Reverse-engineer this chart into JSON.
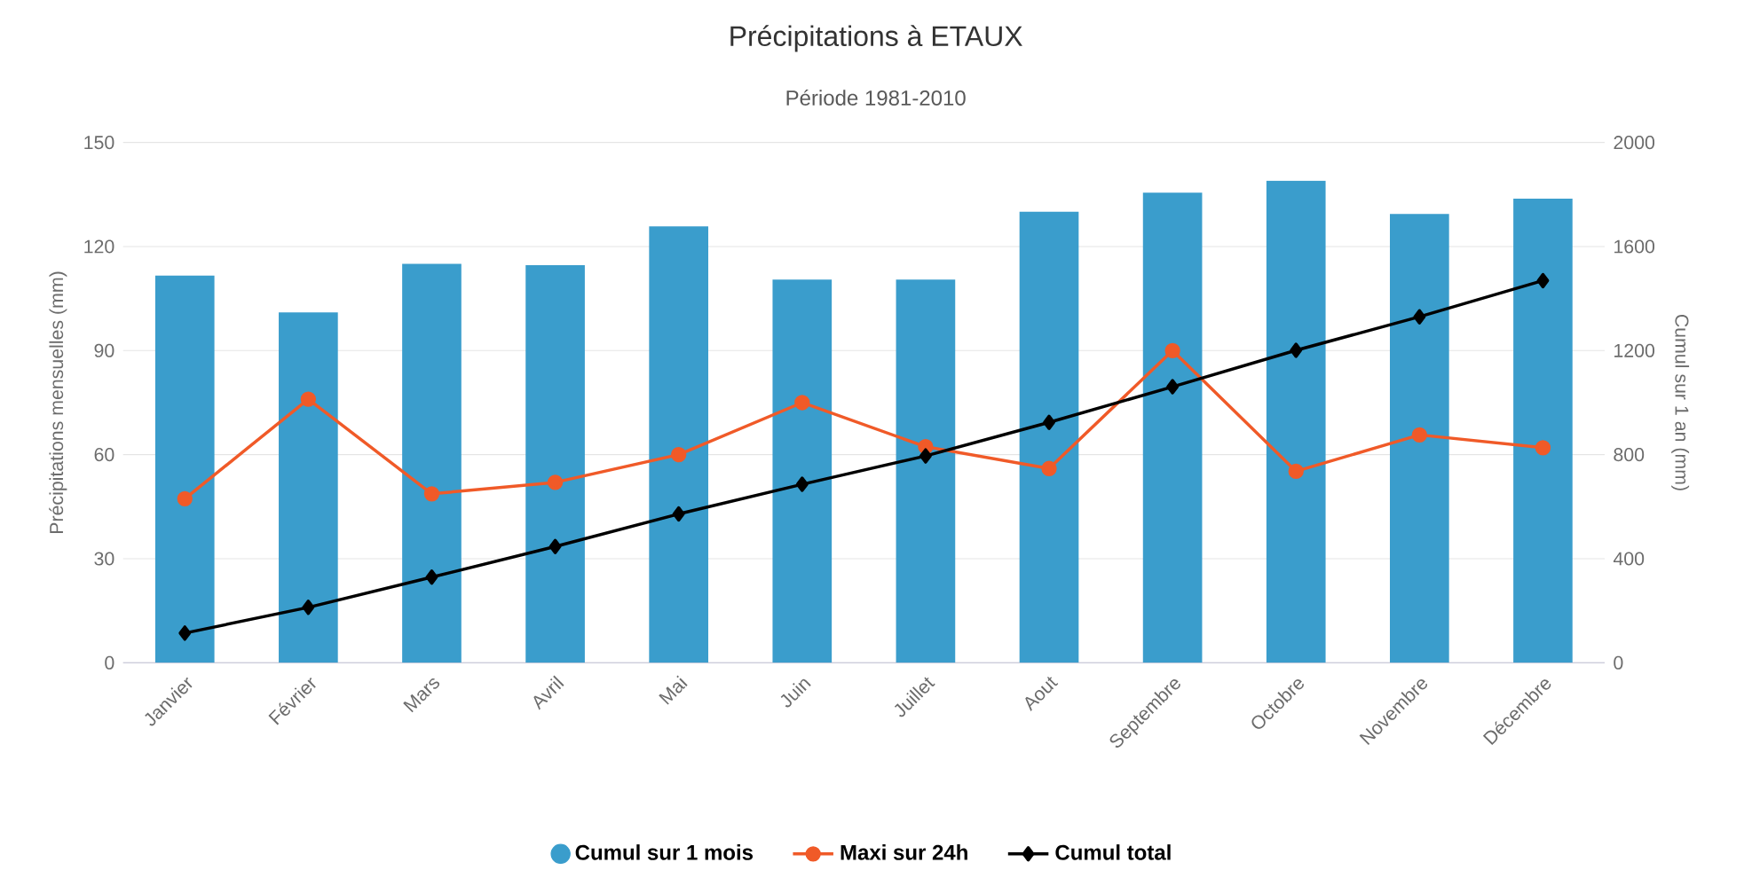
{
  "chart_data": {
    "type": "bar",
    "title": "Précipitations à ETAUX",
    "subtitle": "Période 1981-2010",
    "ylabel": "Précipitations mensuelles (mm)",
    "y2label": "Cumul sur 1 an (mm)",
    "categories": [
      "Janvier",
      "Février",
      "Mars",
      "Avril",
      "Mai",
      "Juin",
      "Juillet",
      "Aout",
      "Septembre",
      "Octobre",
      "Novembre",
      "Décembre"
    ],
    "ylim": [
      0,
      150
    ],
    "yticks": [
      0,
      30,
      60,
      90,
      120,
      150
    ],
    "y2lim": [
      0,
      2000
    ],
    "y2ticks": [
      0,
      400,
      800,
      1200,
      1600,
      2000
    ],
    "grid": "y",
    "legend": "bottom",
    "series": [
      {
        "name": "Cumul sur 1 mois",
        "color": "#3a9dcc",
        "values": [
          111.6,
          101,
          115,
          114.6,
          125.8,
          110.5,
          110.5,
          130,
          135.5,
          139,
          129.4,
          133.8
        ]
      },
      {
        "name": "Maxi sur 24h",
        "type": "line",
        "color": "#f05a28",
        "marker": "circle",
        "values": [
          47.3,
          76,
          48.7,
          52,
          60,
          75,
          62.3,
          56,
          90,
          55.2,
          65.7,
          62
        ]
      },
      {
        "name": "Cumul total",
        "type": "line",
        "color": "#000000",
        "marker": "diamond",
        "axis": "y2",
        "values": [
          114,
          213,
          329,
          447,
          572,
          686,
          795,
          924,
          1061,
          1201,
          1330,
          1469
        ]
      }
    ]
  }
}
